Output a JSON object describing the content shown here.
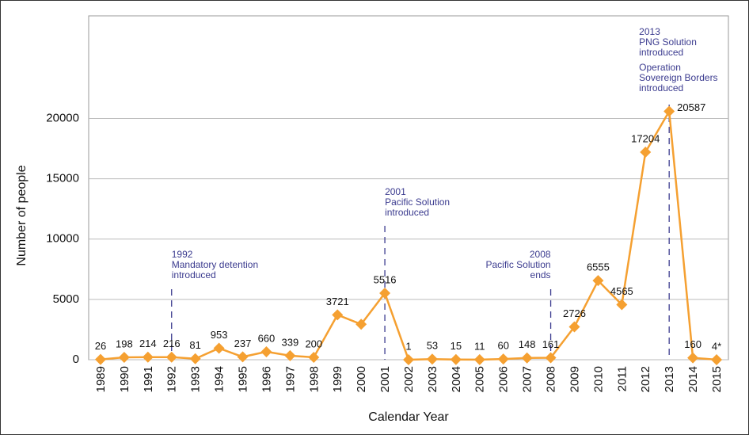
{
  "chart_data": {
    "type": "line",
    "x_label": "Calendar Year",
    "y_label": "Number of people",
    "categories": [
      "1989",
      "1990",
      "1991",
      "1992",
      "1993",
      "1994",
      "1995",
      "1996",
      "1997",
      "1998",
      "1999",
      "2000",
      "2001",
      "2002",
      "2003",
      "2004",
      "2005",
      "2006",
      "2007",
      "2008",
      "2009",
      "2010",
      "2011",
      "2012",
      "2013",
      "2014",
      "2015"
    ],
    "series": [
      {
        "color": "#f5a031",
        "values": [
          26,
          198,
          214,
          216,
          81,
          953,
          237,
          660,
          339,
          200,
          3721,
          2940,
          5516,
          1,
          53,
          15,
          11,
          60,
          148,
          161,
          2726,
          6555,
          4565,
          17204,
          20587,
          160,
          4
        ],
        "value_labels": [
          "26",
          "198",
          "214",
          "216",
          "81",
          "953",
          "237",
          "660",
          "339",
          "200",
          "3721",
          null,
          "5516",
          "1",
          "53",
          "15",
          "11",
          "60",
          "148",
          "161",
          "2726",
          "6555",
          "4565",
          "17204",
          "20587",
          "160",
          "4*"
        ]
      }
    ],
    "ylim": [
      0,
      28500
    ],
    "yticks": [
      0,
      5000,
      10000,
      15000,
      20000
    ],
    "grid": true,
    "annotations": [
      {
        "x": "1992",
        "text": [
          "1992",
          "Mandatory detention",
          "introduced"
        ]
      },
      {
        "x": "2001",
        "text": [
          "2001",
          "Pacific Solution",
          "introduced"
        ]
      },
      {
        "x": "2008",
        "text": [
          "2008",
          "Pacific Solution",
          "ends"
        ]
      },
      {
        "x": "2013",
        "text": [
          "2013",
          "PNG Solution",
          "introduced",
          "Operation",
          "Sovereign Borders",
          "introduced"
        ]
      }
    ]
  }
}
